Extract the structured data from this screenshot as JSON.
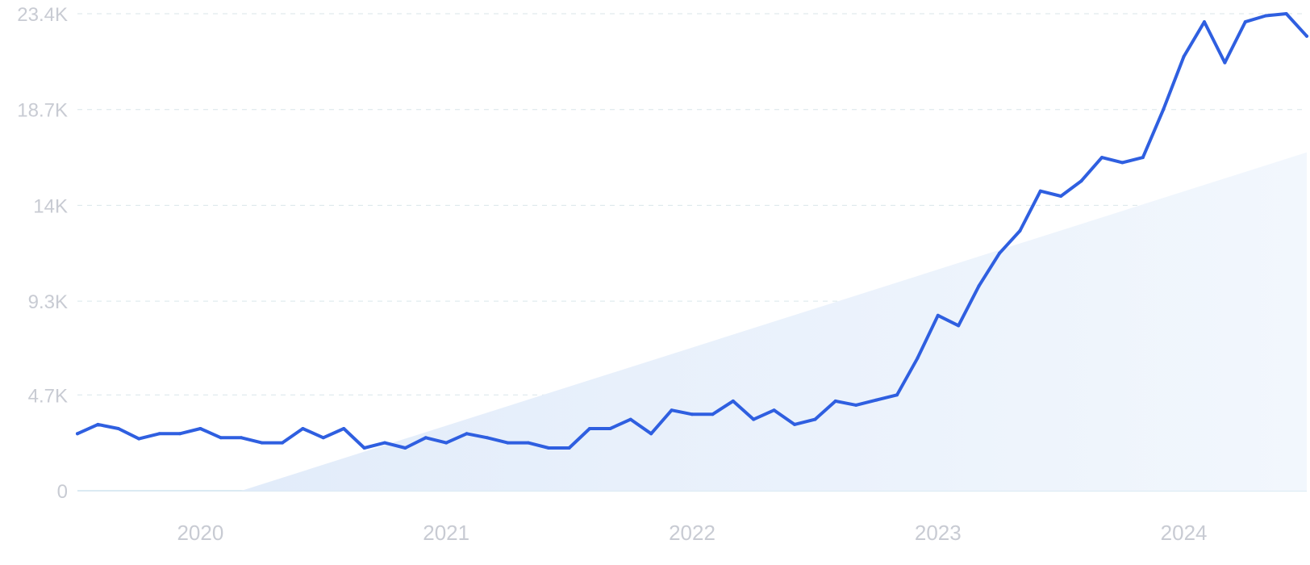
{
  "chart_data": {
    "type": "line",
    "title": "",
    "xlabel": "",
    "ylabel": "",
    "ylim": [
      0,
      23400
    ],
    "yticks": [
      0,
      4700,
      9300,
      14000,
      18700,
      23400
    ],
    "ytick_labels": [
      "0",
      "4.7K",
      "9.3K",
      "14K",
      "18.7K",
      "23.4K"
    ],
    "xticks": [
      "2020-01",
      "2021-01",
      "2022-01",
      "2023-01",
      "2024-01"
    ],
    "xtick_labels": [
      "2020",
      "2021",
      "2022",
      "2023",
      "2024"
    ],
    "xlim": [
      "2019-07",
      "2024-07"
    ],
    "grid": true,
    "legend": "none",
    "colors": {
      "line": "#2f5fe0",
      "trend_fill": "#e4eefb",
      "grid": "#d9e6ea",
      "tick_label": "#c8cbd3"
    },
    "trend": {
      "x": [
        "2020-03",
        "2024-07"
      ],
      "y": [
        0,
        16600
      ]
    },
    "series": [
      {
        "x": [
          "2019-07",
          "2019-08",
          "2019-09",
          "2019-10",
          "2019-11",
          "2019-12",
          "2020-01",
          "2020-02",
          "2020-03",
          "2020-04",
          "2020-05",
          "2020-06",
          "2020-07",
          "2020-08",
          "2020-09",
          "2020-10",
          "2020-11",
          "2020-12",
          "2021-01",
          "2021-02",
          "2021-03",
          "2021-04",
          "2021-05",
          "2021-06",
          "2021-07",
          "2021-08",
          "2021-09",
          "2021-10",
          "2021-11",
          "2021-12",
          "2022-01",
          "2022-02",
          "2022-03",
          "2022-04",
          "2022-05",
          "2022-06",
          "2022-07",
          "2022-08",
          "2022-09",
          "2022-10",
          "2022-11",
          "2022-12",
          "2023-01",
          "2023-02",
          "2023-03",
          "2023-04",
          "2023-05",
          "2023-06",
          "2023-07",
          "2023-08",
          "2023-09",
          "2023-10",
          "2023-11",
          "2023-12",
          "2024-01",
          "2024-02",
          "2024-03",
          "2024-04",
          "2024-05",
          "2024-06",
          "2024-07"
        ],
        "values": [
          2800,
          3250,
          3050,
          2550,
          2800,
          2800,
          3050,
          2600,
          2600,
          2350,
          2350,
          3050,
          2600,
          3050,
          2100,
          2350,
          2100,
          2600,
          2350,
          2800,
          2600,
          2350,
          2350,
          2100,
          2100,
          3050,
          3050,
          3500,
          2800,
          3950,
          3750,
          3750,
          4400,
          3500,
          3950,
          3250,
          3500,
          4400,
          4200,
          4450,
          4700,
          6500,
          8600,
          8100,
          10050,
          11650,
          12750,
          14700,
          14450,
          15200,
          16350,
          16100,
          16350,
          18700,
          21300,
          23000,
          21000,
          23000,
          23300,
          23400,
          22300
        ]
      }
    ]
  }
}
